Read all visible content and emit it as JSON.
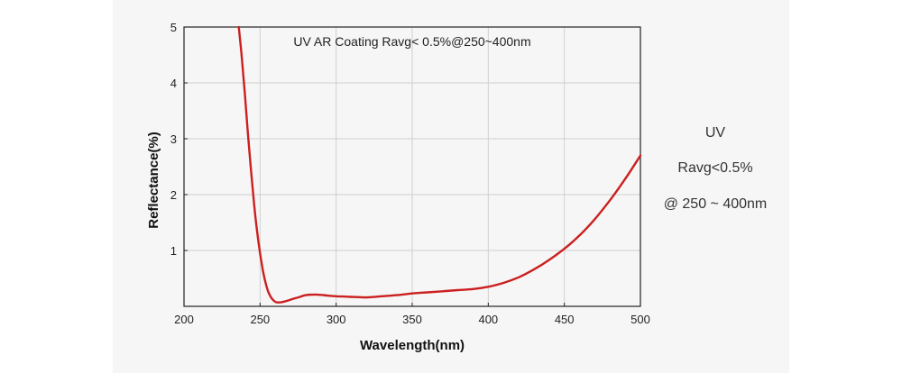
{
  "chart_data": {
    "type": "line",
    "title": "UV AR Coating Ravg< 0.5%@250~400nm",
    "xlabel": "Wavelength(nm)",
    "ylabel": "Reflectance(%)",
    "xlim": [
      200,
      500
    ],
    "ylim": [
      0,
      5
    ],
    "xticks": [
      "200",
      "250",
      "300",
      "350",
      "400",
      "450",
      "500"
    ],
    "yticks": [
      "1",
      "2",
      "3",
      "4",
      "5"
    ],
    "grid": true,
    "line_color": "#cc1f1f",
    "series": [
      {
        "x": [
          236,
          238,
          240,
          242,
          244,
          246,
          248,
          250,
          252,
          254,
          256,
          258,
          260,
          262,
          264,
          266,
          268,
          270,
          275,
          280,
          285,
          290,
          295,
          300,
          305,
          310,
          315,
          320,
          330,
          340,
          350,
          360,
          370,
          380,
          390,
          400,
          410,
          420,
          430,
          440,
          450,
          460,
          470,
          480,
          490,
          500
        ],
        "y": [
          5.0,
          4.45,
          3.8,
          3.1,
          2.45,
          1.85,
          1.35,
          0.95,
          0.62,
          0.38,
          0.22,
          0.13,
          0.08,
          0.07,
          0.075,
          0.085,
          0.1,
          0.12,
          0.16,
          0.2,
          0.21,
          0.205,
          0.19,
          0.18,
          0.175,
          0.17,
          0.165,
          0.16,
          0.18,
          0.2,
          0.23,
          0.25,
          0.27,
          0.29,
          0.31,
          0.35,
          0.42,
          0.52,
          0.66,
          0.83,
          1.03,
          1.27,
          1.56,
          1.9,
          2.28,
          2.7
        ]
      }
    ]
  },
  "side_note": {
    "line1": "UV",
    "line2": "Ravg<0.5%",
    "line3": "@ 250 ~ 400nm"
  }
}
